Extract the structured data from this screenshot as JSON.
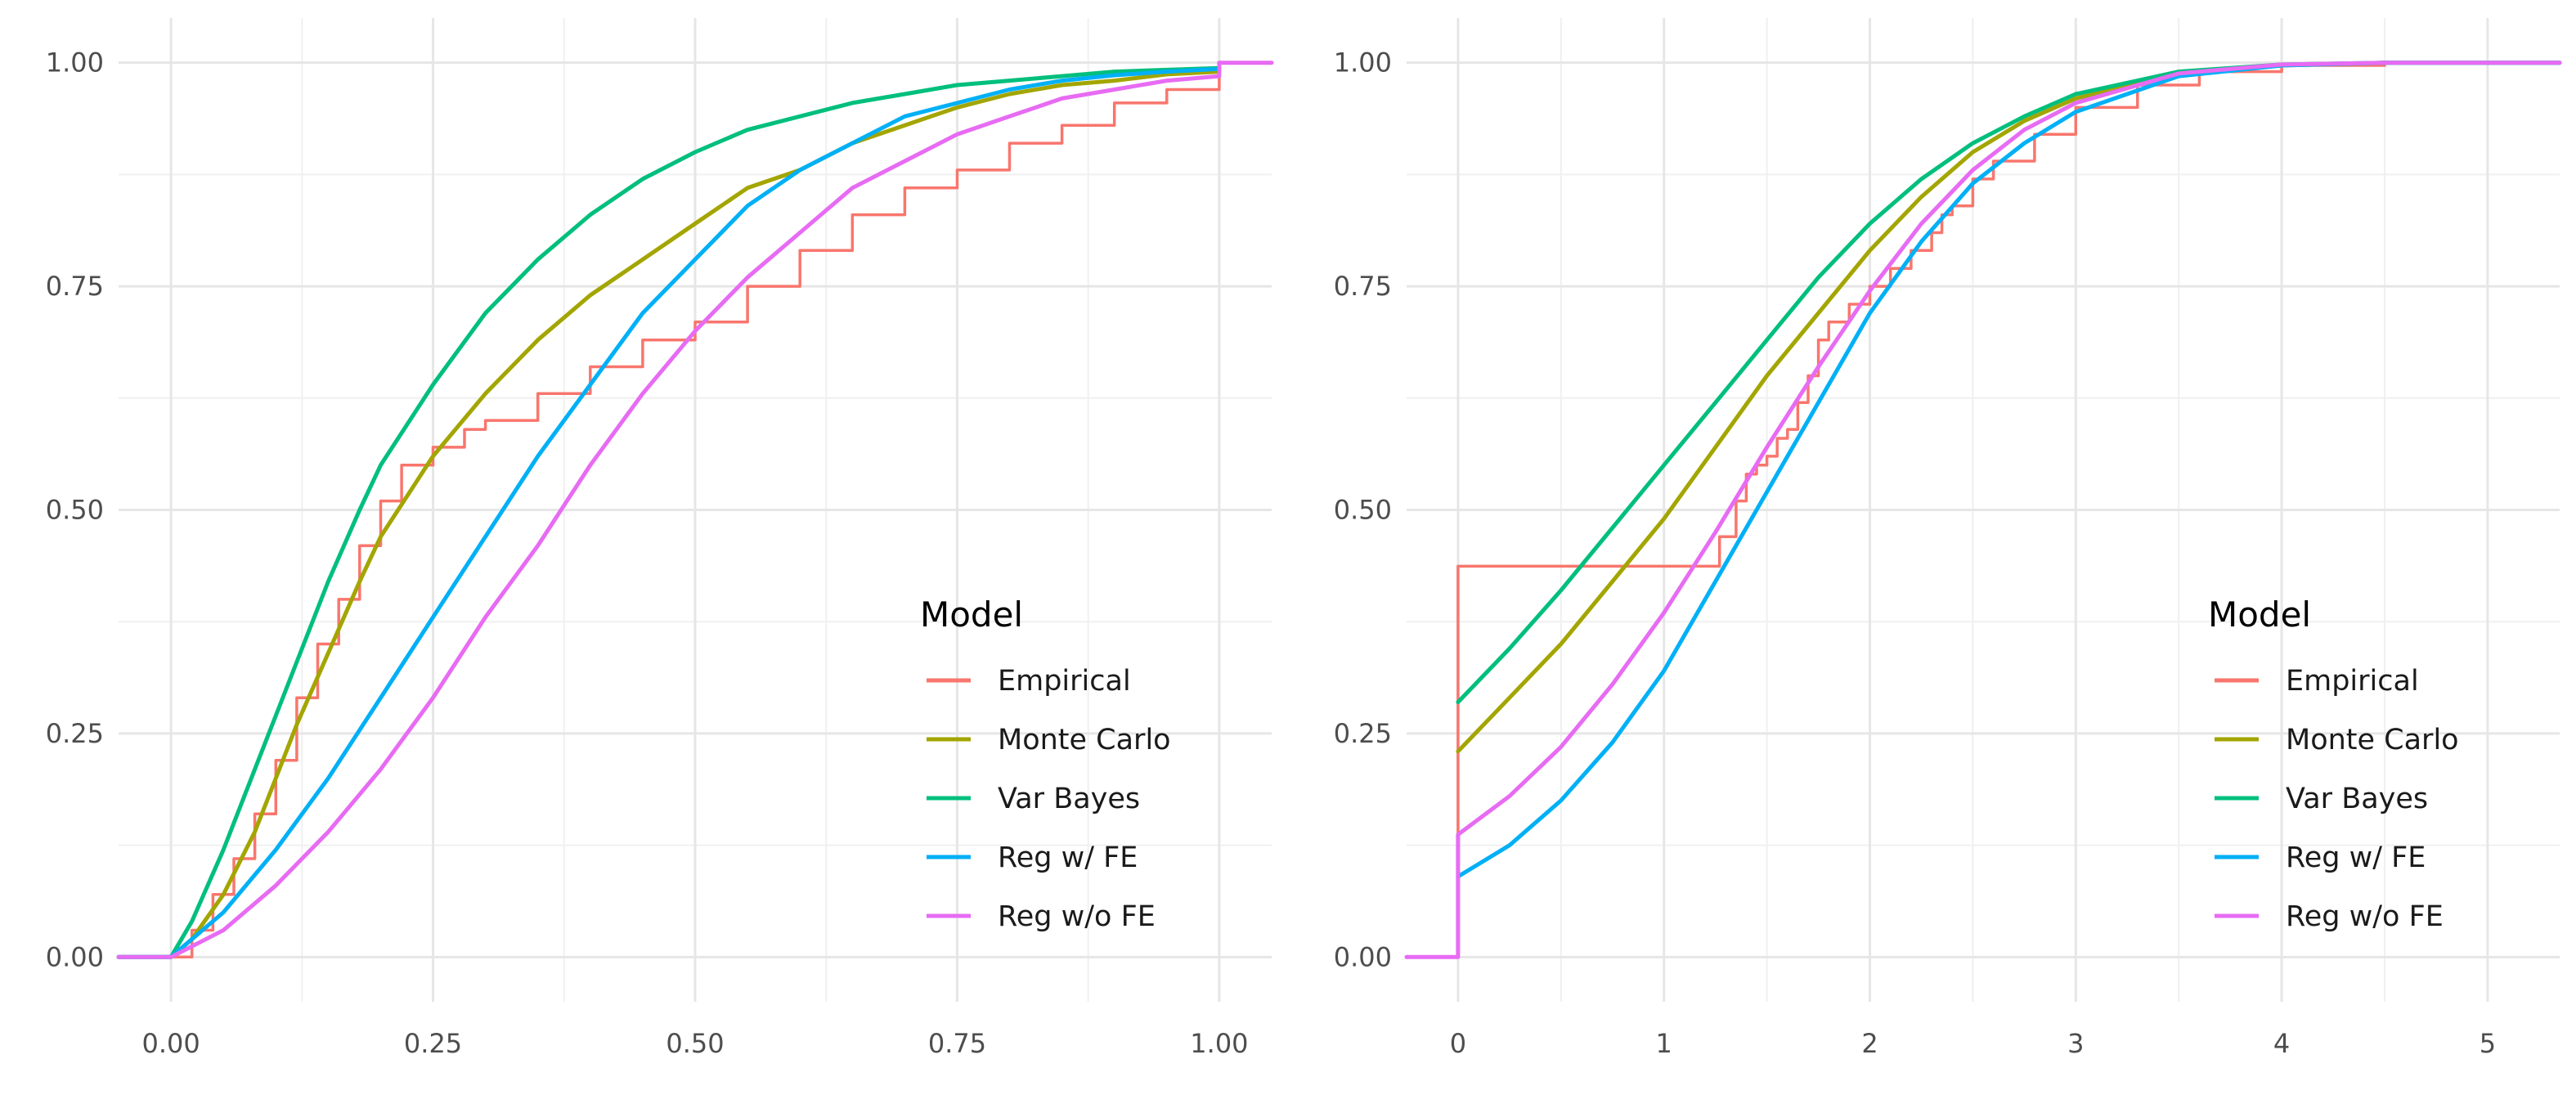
{
  "chart_data": [
    {
      "type": "line",
      "title": "",
      "xlabel": "",
      "ylabel": "",
      "xlim": [
        -0.05,
        1.05
      ],
      "ylim": [
        -0.05,
        1.05
      ],
      "xticks": [
        0.0,
        0.25,
        0.5,
        0.75,
        1.0
      ],
      "xtick_labels": [
        "0.00",
        "0.25",
        "0.50",
        "0.75",
        "1.00"
      ],
      "yticks": [
        0.0,
        0.25,
        0.5,
        0.75,
        1.0
      ],
      "ytick_labels": [
        "0.00",
        "0.25",
        "0.50",
        "0.75",
        "1.00"
      ],
      "grid": true,
      "legend": {
        "title": "Model",
        "position": "bottom-right inside"
      },
      "series": [
        {
          "name": "Empirical",
          "color": "#F8766D",
          "step": true,
          "x": [
            -0.05,
            0.0,
            0.02,
            0.04,
            0.06,
            0.08,
            0.1,
            0.12,
            0.14,
            0.16,
            0.18,
            0.2,
            0.22,
            0.25,
            0.28,
            0.3,
            0.35,
            0.4,
            0.45,
            0.5,
            0.55,
            0.6,
            0.65,
            0.7,
            0.75,
            0.8,
            0.85,
            0.9,
            0.95,
            1.0,
            1.0,
            1.05
          ],
          "y": [
            0.0,
            0.0,
            0.03,
            0.07,
            0.11,
            0.16,
            0.22,
            0.29,
            0.35,
            0.4,
            0.46,
            0.51,
            0.55,
            0.57,
            0.59,
            0.6,
            0.63,
            0.66,
            0.69,
            0.71,
            0.75,
            0.79,
            0.83,
            0.86,
            0.88,
            0.91,
            0.93,
            0.955,
            0.97,
            0.975,
            1.0,
            1.0
          ]
        },
        {
          "name": "Monte Carlo",
          "color": "#A3A500",
          "x": [
            -0.05,
            0.0,
            0.02,
            0.05,
            0.08,
            0.1,
            0.12,
            0.15,
            0.18,
            0.2,
            0.25,
            0.3,
            0.35,
            0.4,
            0.45,
            0.5,
            0.55,
            0.6,
            0.65,
            0.7,
            0.75,
            0.8,
            0.85,
            0.9,
            0.95,
            1.0
          ],
          "y": [
            0.0,
            0.0,
            0.02,
            0.07,
            0.14,
            0.2,
            0.26,
            0.34,
            0.42,
            0.47,
            0.56,
            0.63,
            0.69,
            0.74,
            0.78,
            0.82,
            0.86,
            0.88,
            0.91,
            0.93,
            0.95,
            0.965,
            0.975,
            0.98,
            0.987,
            0.99
          ]
        },
        {
          "name": "Var Bayes",
          "color": "#00BF7D",
          "x": [
            -0.05,
            0.0,
            0.02,
            0.05,
            0.08,
            0.1,
            0.12,
            0.15,
            0.18,
            0.2,
            0.25,
            0.3,
            0.35,
            0.4,
            0.45,
            0.5,
            0.55,
            0.6,
            0.65,
            0.7,
            0.75,
            0.8,
            0.85,
            0.9,
            0.95,
            1.0
          ],
          "y": [
            0.0,
            0.0,
            0.04,
            0.12,
            0.21,
            0.27,
            0.33,
            0.42,
            0.5,
            0.55,
            0.64,
            0.72,
            0.78,
            0.83,
            0.87,
            0.9,
            0.925,
            0.94,
            0.955,
            0.965,
            0.975,
            0.98,
            0.985,
            0.99,
            0.992,
            0.994
          ]
        },
        {
          "name": "Reg w/ FE",
          "color": "#00B0F6",
          "x": [
            -0.05,
            0.0,
            0.05,
            0.1,
            0.15,
            0.2,
            0.25,
            0.3,
            0.35,
            0.4,
            0.45,
            0.5,
            0.55,
            0.6,
            0.65,
            0.7,
            0.75,
            0.8,
            0.85,
            0.9,
            0.95,
            1.0
          ],
          "y": [
            0.0,
            0.0,
            0.05,
            0.12,
            0.2,
            0.29,
            0.38,
            0.47,
            0.56,
            0.64,
            0.72,
            0.78,
            0.84,
            0.88,
            0.91,
            0.94,
            0.955,
            0.97,
            0.98,
            0.986,
            0.99,
            0.993
          ]
        },
        {
          "name": "Reg w/o FE",
          "color": "#E76BF3",
          "x": [
            -0.05,
            0.0,
            0.05,
            0.1,
            0.15,
            0.2,
            0.25,
            0.3,
            0.35,
            0.4,
            0.45,
            0.5,
            0.55,
            0.6,
            0.65,
            0.7,
            0.75,
            0.8,
            0.85,
            0.9,
            0.95,
            1.0,
            1.0,
            1.05
          ],
          "y": [
            0.0,
            0.0,
            0.03,
            0.08,
            0.14,
            0.21,
            0.29,
            0.38,
            0.46,
            0.55,
            0.63,
            0.7,
            0.76,
            0.81,
            0.86,
            0.89,
            0.92,
            0.94,
            0.96,
            0.97,
            0.98,
            0.985,
            1.0,
            1.0
          ]
        }
      ]
    },
    {
      "type": "line",
      "title": "",
      "xlabel": "",
      "ylabel": "",
      "xlim": [
        -0.25,
        5.35
      ],
      "ylim": [
        -0.05,
        1.05
      ],
      "xticks": [
        0,
        1,
        2,
        3,
        4,
        5
      ],
      "xtick_labels": [
        "0",
        "1",
        "2",
        "3",
        "4",
        "5"
      ],
      "yticks": [
        0.0,
        0.25,
        0.5,
        0.75,
        1.0
      ],
      "ytick_labels": [
        "0.00",
        "0.25",
        "0.50",
        "0.75",
        "1.00"
      ],
      "grid": true,
      "legend": {
        "title": "Model",
        "position": "bottom-right inside"
      },
      "series": [
        {
          "name": "Empirical",
          "color": "#F8766D",
          "step": true,
          "x": [
            -0.25,
            0.0,
            0.0,
            1.27,
            1.27,
            1.35,
            1.4,
            1.45,
            1.5,
            1.55,
            1.6,
            1.65,
            1.7,
            1.75,
            1.8,
            1.9,
            2.0,
            2.1,
            2.2,
            2.3,
            2.35,
            2.4,
            2.5,
            2.6,
            2.8,
            3.0,
            3.3,
            3.6,
            4.0,
            4.5,
            5.35
          ],
          "y": [
            0.0,
            0.0,
            0.437,
            0.437,
            0.47,
            0.51,
            0.54,
            0.55,
            0.56,
            0.58,
            0.59,
            0.62,
            0.65,
            0.69,
            0.71,
            0.73,
            0.75,
            0.77,
            0.79,
            0.81,
            0.83,
            0.84,
            0.87,
            0.89,
            0.92,
            0.95,
            0.975,
            0.99,
            0.997,
            1.0,
            1.0
          ]
        },
        {
          "name": "Monte Carlo",
          "color": "#A3A500",
          "x": [
            0.0,
            0.25,
            0.5,
            0.75,
            1.0,
            1.25,
            1.5,
            1.75,
            2.0,
            2.25,
            2.5,
            2.75,
            3.0,
            3.5,
            4.0,
            4.5,
            5.0,
            5.35
          ],
          "y": [
            0.23,
            0.29,
            0.35,
            0.42,
            0.49,
            0.57,
            0.65,
            0.72,
            0.79,
            0.85,
            0.9,
            0.935,
            0.96,
            0.988,
            0.997,
            1.0,
            1.0,
            1.0
          ]
        },
        {
          "name": "Var Bayes",
          "color": "#00BF7D",
          "x": [
            0.0,
            0.25,
            0.5,
            0.75,
            1.0,
            1.25,
            1.5,
            1.75,
            2.0,
            2.25,
            2.5,
            2.75,
            3.0,
            3.5,
            4.0,
            4.5,
            5.0,
            5.35
          ],
          "y": [
            0.285,
            0.345,
            0.41,
            0.48,
            0.55,
            0.62,
            0.69,
            0.76,
            0.82,
            0.87,
            0.91,
            0.94,
            0.965,
            0.99,
            0.998,
            1.0,
            1.0,
            1.0
          ]
        },
        {
          "name": "Reg w/ FE",
          "color": "#00B0F6",
          "x": [
            0.0,
            0.25,
            0.5,
            0.75,
            1.0,
            1.25,
            1.5,
            1.75,
            2.0,
            2.25,
            2.5,
            2.75,
            3.0,
            3.5,
            4.0,
            4.5,
            5.0,
            5.35
          ],
          "y": [
            0.09,
            0.125,
            0.175,
            0.24,
            0.32,
            0.42,
            0.52,
            0.62,
            0.72,
            0.8,
            0.865,
            0.91,
            0.945,
            0.985,
            0.997,
            1.0,
            1.0,
            1.0
          ]
        },
        {
          "name": "Reg w/o FE",
          "color": "#E76BF3",
          "x": [
            -0.25,
            0.0,
            0.0,
            0.25,
            0.5,
            0.75,
            1.0,
            1.25,
            1.5,
            1.75,
            2.0,
            2.25,
            2.5,
            2.75,
            3.0,
            3.5,
            4.0,
            4.5,
            5.0,
            5.35
          ],
          "y": [
            0.0,
            0.0,
            0.137,
            0.18,
            0.235,
            0.305,
            0.385,
            0.475,
            0.57,
            0.66,
            0.745,
            0.82,
            0.88,
            0.925,
            0.955,
            0.988,
            0.998,
            1.0,
            1.0,
            1.0
          ]
        }
      ]
    }
  ]
}
